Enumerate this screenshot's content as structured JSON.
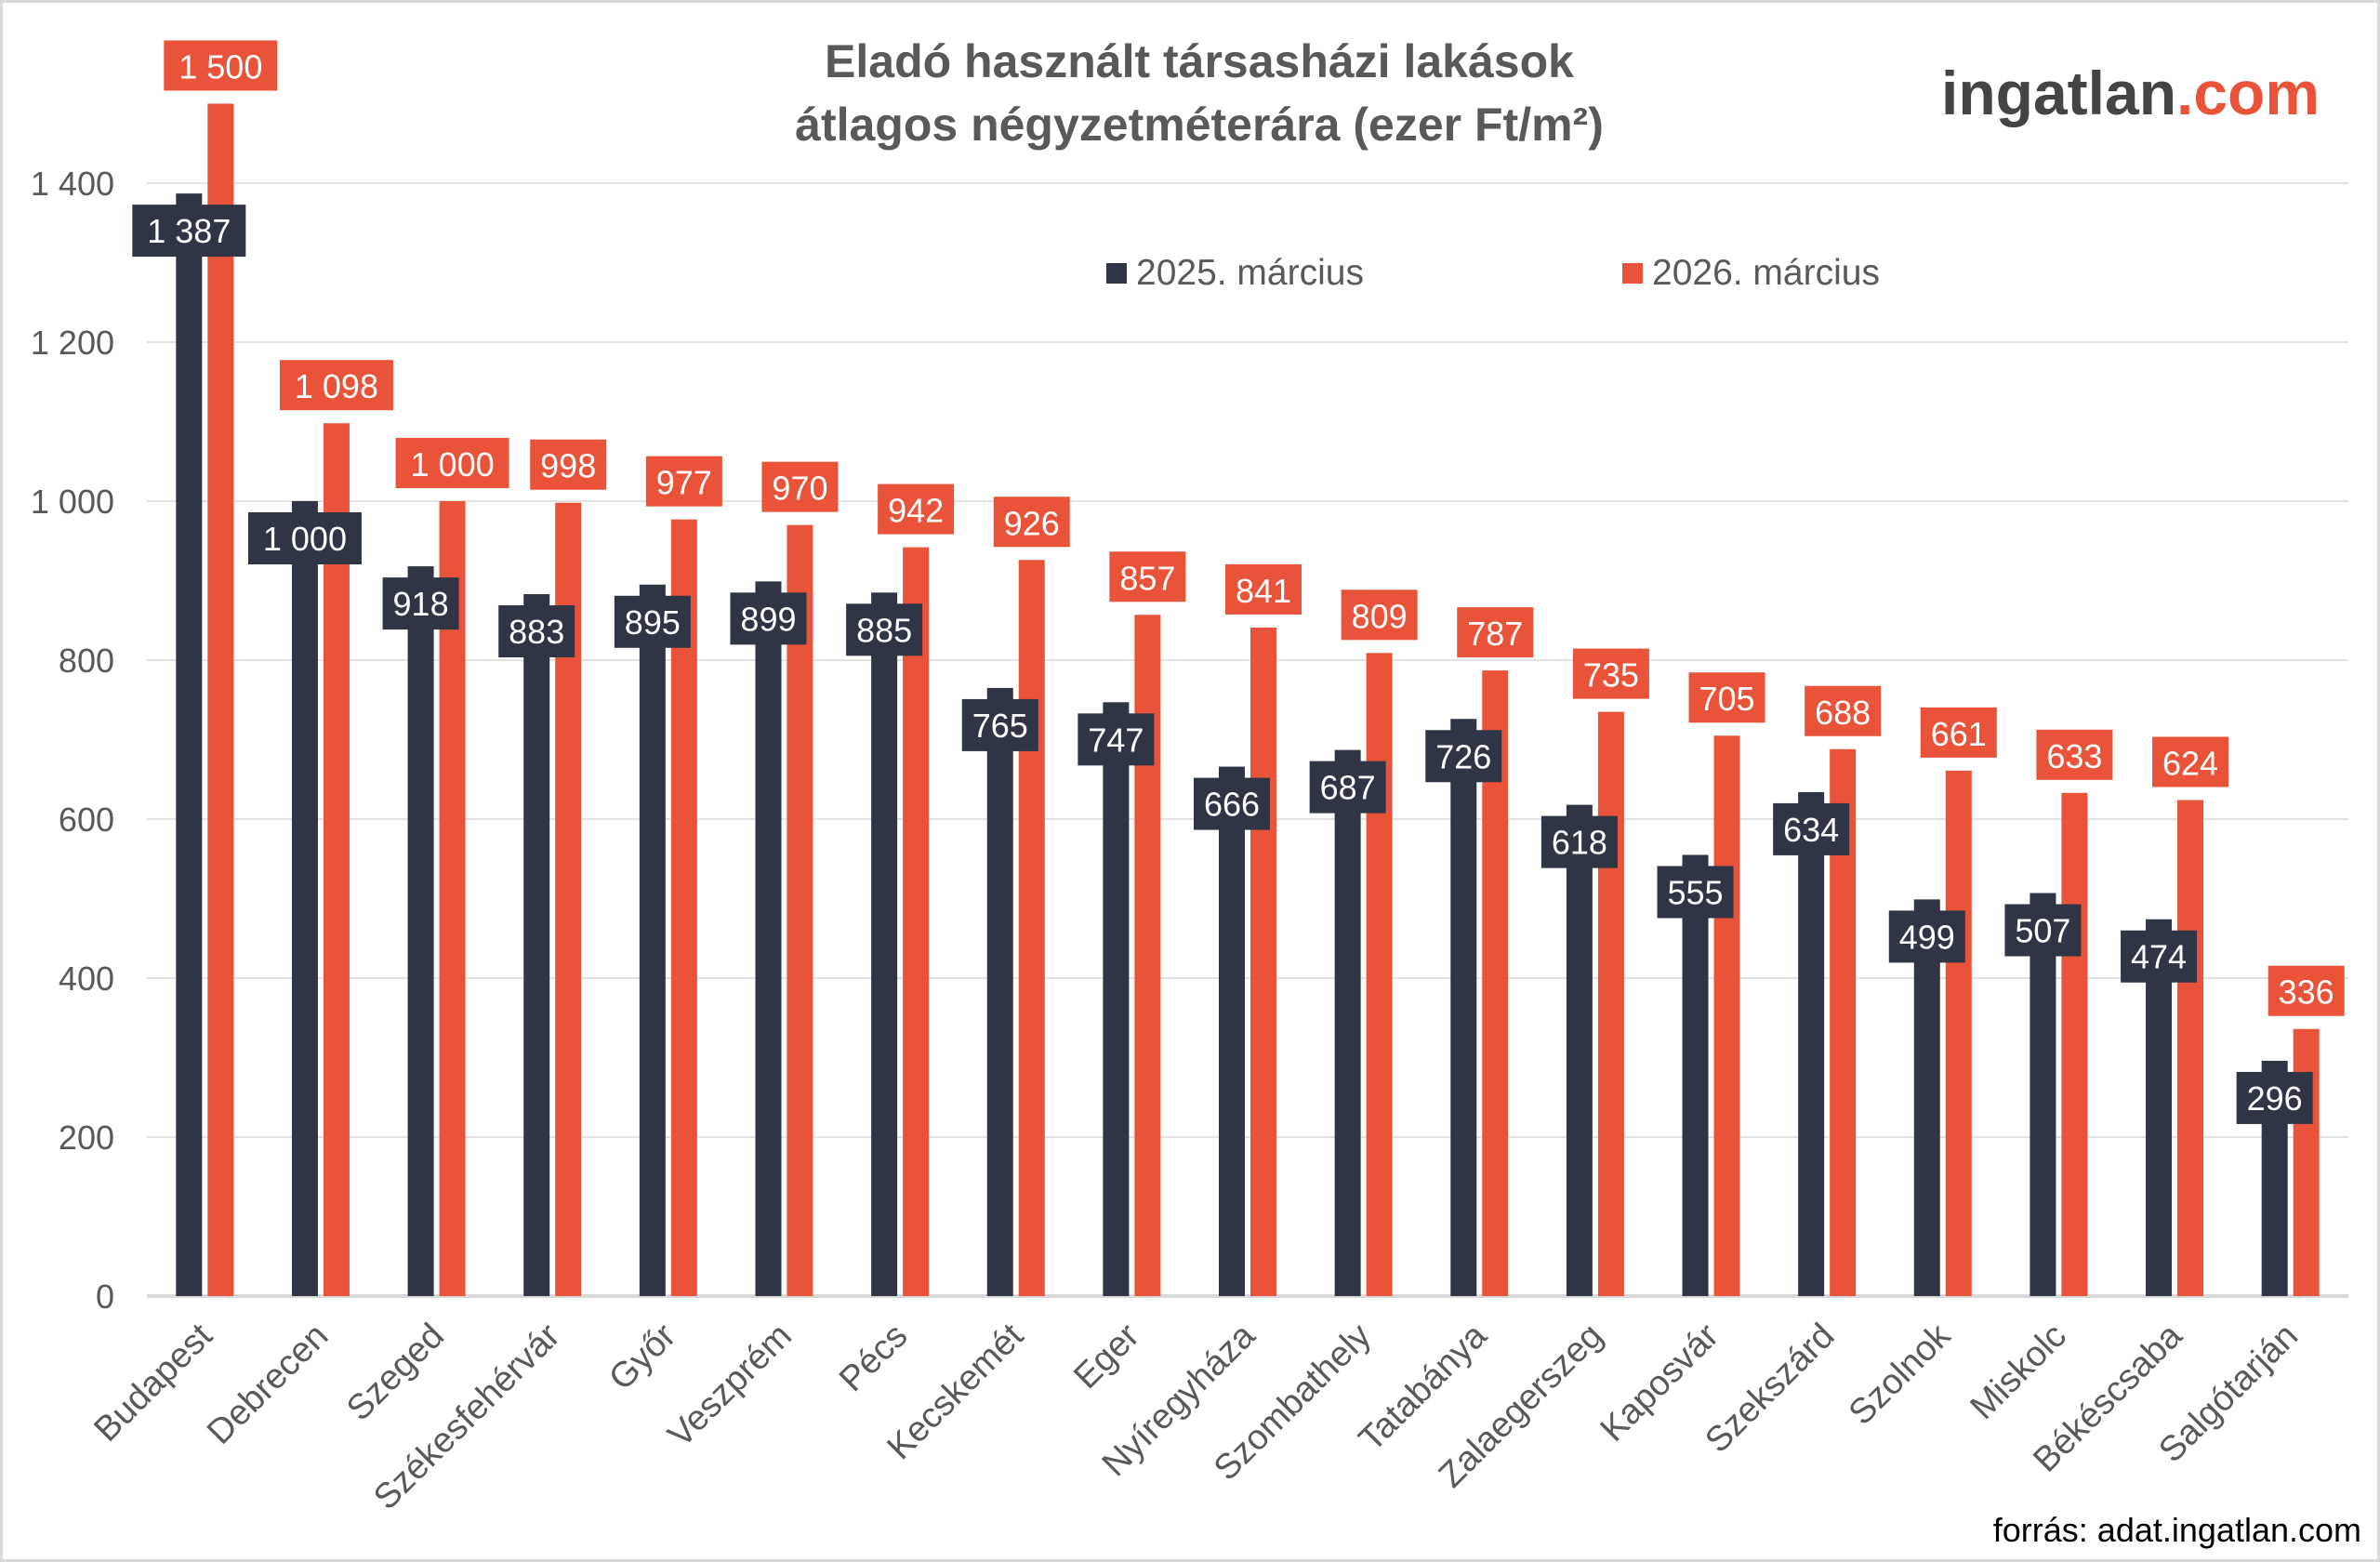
{
  "chart_data": {
    "type": "bar",
    "title": [
      "Eladó használt társasházi lakások",
      "átlagos négyzetméterára (ezer Ft/m²)"
    ],
    "categories": [
      "Budapest",
      "Debrecen",
      "Szeged",
      "Székesfehérvár",
      "Győr",
      "Veszprém",
      "Pécs",
      "Kecskemét",
      "Eger",
      "Nyíregyháza",
      "Szombathely",
      "Tatabánya",
      "Zalaegerszeg",
      "Kaposvár",
      "Szekszárd",
      "Szolnok",
      "Miskolc",
      "Békéscsaba",
      "Salgótarján"
    ],
    "series": [
      {
        "name": "2025. március",
        "color": "#2f3545",
        "values": [
          1387,
          1000,
          918,
          883,
          895,
          899,
          885,
          765,
          747,
          666,
          687,
          726,
          618,
          555,
          634,
          499,
          507,
          474,
          296
        ],
        "labels": [
          "1 387",
          "1 000",
          "918",
          "883",
          "895",
          "899",
          "885",
          "765",
          "747",
          "666",
          "687",
          "726",
          "618",
          "555",
          "634",
          "499",
          "507",
          "474",
          "296"
        ]
      },
      {
        "name": "2026. március",
        "color": "#e8533a",
        "values": [
          1500,
          1098,
          1000,
          998,
          977,
          970,
          942,
          926,
          857,
          841,
          809,
          787,
          735,
          705,
          688,
          661,
          633,
          624,
          336
        ],
        "labels": [
          "1 500",
          "1 098",
          "1 000",
          "998",
          "977",
          "970",
          "942",
          "926",
          "857",
          "841",
          "809",
          "787",
          "735",
          "705",
          "688",
          "661",
          "633",
          "624",
          "336"
        ]
      }
    ],
    "yticks": [
      0,
      200,
      400,
      600,
      800,
      1000,
      1200,
      1400
    ],
    "ytick_labels": [
      "0",
      "200",
      "400",
      "600",
      "800",
      "1 000",
      "1 200",
      "1 400"
    ],
    "ylim": [
      0,
      1400
    ],
    "grid": true,
    "legend": "top-center",
    "source": "forrás: adat.ingatlan.com",
    "logo": {
      "main": "ingatlan",
      "accent": ".com"
    }
  }
}
